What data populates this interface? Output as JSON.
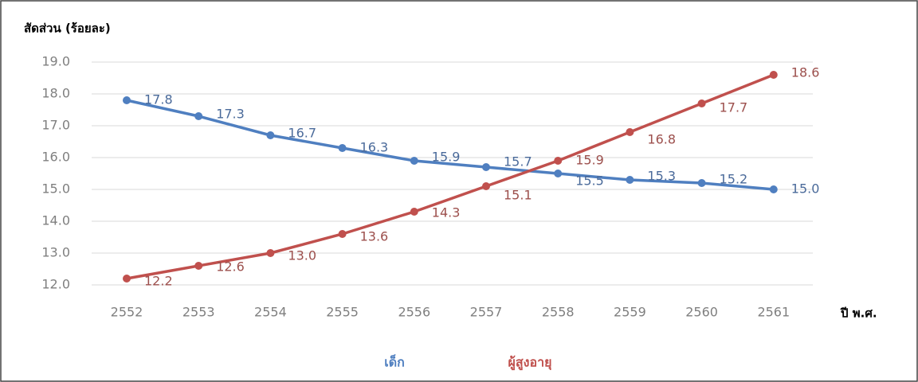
{
  "chart_data": {
    "type": "line",
    "y_label": "สัดส่วน (ร้อยละ)",
    "x_label": "ปี พ.ศ.",
    "categories": [
      "2552",
      "2553",
      "2554",
      "2555",
      "2556",
      "2557",
      "2558",
      "2559",
      "2560",
      "2561"
    ],
    "series": [
      {
        "name": "เด็ก",
        "color": "#4f7fc0",
        "values": [
          17.8,
          17.3,
          16.7,
          16.3,
          15.9,
          15.7,
          15.5,
          15.3,
          15.2,
          15.0
        ],
        "value_labels": [
          "17.8",
          "17.3",
          "16.7",
          "16.3",
          "15.9",
          "15.7",
          "15.5",
          "15.3",
          "15.2",
          "15.0"
        ]
      },
      {
        "name": "ผู้สูงอายุ",
        "color": "#c0504d",
        "values": [
          12.2,
          12.6,
          13.0,
          13.6,
          14.3,
          15.1,
          15.9,
          16.8,
          17.7,
          18.6
        ],
        "value_labels": [
          "12.2",
          "12.6",
          "13.0",
          "13.6",
          "14.3",
          "15.1",
          "15.9",
          "16.8",
          "17.7",
          "18.6"
        ]
      }
    ],
    "ylim": [
      12,
      19
    ],
    "yticks": [
      {
        "value": 12,
        "label": "12.0"
      },
      {
        "value": 13,
        "label": "13.0"
      },
      {
        "value": 14,
        "label": "14.0"
      },
      {
        "value": 15,
        "label": "15.0"
      },
      {
        "value": 16,
        "label": "16.0"
      },
      {
        "value": 17,
        "label": "17.0"
      },
      {
        "value": 18,
        "label": "18.0"
      },
      {
        "value": 19,
        "label": "19.0"
      }
    ],
    "grid": true,
    "legend": "bottom"
  }
}
